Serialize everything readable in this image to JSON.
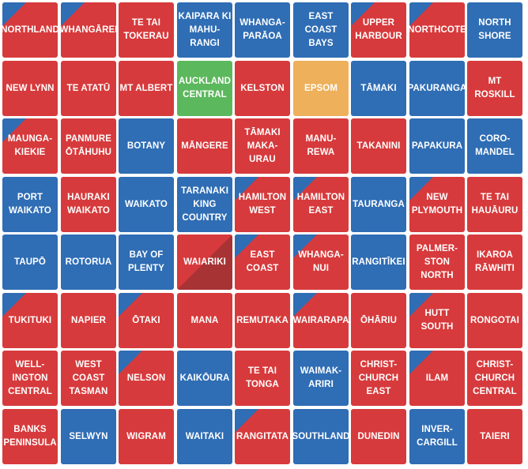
{
  "colors": {
    "red": "#d73a3c",
    "blue": "#2f6db4",
    "green": "#5cb85c",
    "orange": "#eeb05a",
    "darkred": "#a83335"
  },
  "electorates": [
    {
      "name": "NORTHLAND",
      "fill": "red",
      "corner": "blue"
    },
    {
      "name": "WHANGĀREI",
      "fill": "red",
      "corner": "blue"
    },
    {
      "name": "TE TAI\nTOKERAU",
      "fill": "red",
      "corner": null
    },
    {
      "name": "KAIPARA KI\nMAHU-\nRANGI",
      "fill": "blue",
      "corner": null
    },
    {
      "name": "WHANGA-\nPARĀOA",
      "fill": "blue",
      "corner": null
    },
    {
      "name": "EAST\nCOAST\nBAYS",
      "fill": "blue",
      "corner": null
    },
    {
      "name": "UPPER\nHARBOUR",
      "fill": "red",
      "corner": "blue"
    },
    {
      "name": "NORTHCOTE",
      "fill": "red",
      "corner": "blue"
    },
    {
      "name": "NORTH\nSHORE",
      "fill": "blue",
      "corner": null
    },
    {
      "name": "NEW LYNN",
      "fill": "red",
      "corner": null
    },
    {
      "name": "TE ATATŪ",
      "fill": "red",
      "corner": null
    },
    {
      "name": "MT ALBERT",
      "fill": "red",
      "corner": null
    },
    {
      "name": "AUCKLAND\nCENTRAL",
      "fill": "green",
      "corner": null
    },
    {
      "name": "KELSTON",
      "fill": "red",
      "corner": null
    },
    {
      "name": "EPSOM",
      "fill": "orange",
      "corner": null
    },
    {
      "name": "TĀMAKI",
      "fill": "blue",
      "corner": null
    },
    {
      "name": "PAKURANGA",
      "fill": "blue",
      "corner": null
    },
    {
      "name": "MT\nROSKILL",
      "fill": "red",
      "corner": null
    },
    {
      "name": "MAUNGA-\nKIEKIE",
      "fill": "red",
      "corner": "blue"
    },
    {
      "name": "PANMURE\nŌTĀHUHU",
      "fill": "red",
      "corner": null
    },
    {
      "name": "BOTANY",
      "fill": "blue",
      "corner": null
    },
    {
      "name": "MĀNGERE",
      "fill": "red",
      "corner": null
    },
    {
      "name": "TĀMAKI\nMAKA-\nURAU",
      "fill": "red",
      "corner": null
    },
    {
      "name": "MANU-\nREWA",
      "fill": "red",
      "corner": null
    },
    {
      "name": "TAKANINI",
      "fill": "red",
      "corner": null
    },
    {
      "name": "PAPAKURA",
      "fill": "blue",
      "corner": null
    },
    {
      "name": "CORO-\nMANDEL",
      "fill": "blue",
      "corner": null
    },
    {
      "name": "PORT\nWAIKATO",
      "fill": "blue",
      "corner": null
    },
    {
      "name": "HAURAKI\nWAIKATO",
      "fill": "red",
      "corner": null
    },
    {
      "name": "WAIKATO",
      "fill": "blue",
      "corner": null
    },
    {
      "name": "TARANAKI\nKING\nCOUNTRY",
      "fill": "blue",
      "corner": null
    },
    {
      "name": "HAMILTON\nWEST",
      "fill": "red",
      "corner": "blue"
    },
    {
      "name": "HAMILTON\nEAST",
      "fill": "red",
      "corner": "blue"
    },
    {
      "name": "TAURANGA",
      "fill": "blue",
      "corner": null
    },
    {
      "name": "NEW\nPLYMOUTH",
      "fill": "red",
      "corner": "blue"
    },
    {
      "name": "TE TAI\nHAUĀURU",
      "fill": "red",
      "corner": null
    },
    {
      "name": "TAUPŌ",
      "fill": "blue",
      "corner": null
    },
    {
      "name": "ROTORUA",
      "fill": "blue",
      "corner": null
    },
    {
      "name": "BAY OF\nPLENTY",
      "fill": "blue",
      "corner": null
    },
    {
      "name": "WAIARIKI",
      "fill": "darkred",
      "corner": "red"
    },
    {
      "name": "EAST\nCOAST",
      "fill": "red",
      "corner": "blue"
    },
    {
      "name": "WHANGA-\nNUI",
      "fill": "red",
      "corner": "blue"
    },
    {
      "name": "RANGITĪKEI",
      "fill": "blue",
      "corner": null
    },
    {
      "name": "PALMER-\nSTON\nNORTH",
      "fill": "red",
      "corner": null
    },
    {
      "name": "IKAROA\nRĀWHITI",
      "fill": "red",
      "corner": null
    },
    {
      "name": "TUKITUKI",
      "fill": "red",
      "corner": "blue"
    },
    {
      "name": "NAPIER",
      "fill": "red",
      "corner": null
    },
    {
      "name": "ŌTAKI",
      "fill": "red",
      "corner": "blue"
    },
    {
      "name": "MANA",
      "fill": "red",
      "corner": null
    },
    {
      "name": "REMUTAKA",
      "fill": "red",
      "corner": null
    },
    {
      "name": "WAIRARAPA",
      "fill": "red",
      "corner": "blue"
    },
    {
      "name": "ŌHĀRIU",
      "fill": "red",
      "corner": null
    },
    {
      "name": "HUTT\nSOUTH",
      "fill": "red",
      "corner": "blue"
    },
    {
      "name": "RONGOTAI",
      "fill": "red",
      "corner": null
    },
    {
      "name": "WELL-\nINGTON\nCENTRAL",
      "fill": "red",
      "corner": null
    },
    {
      "name": "WEST\nCOAST\nTASMAN",
      "fill": "red",
      "corner": null
    },
    {
      "name": "NELSON",
      "fill": "red",
      "corner": "blue"
    },
    {
      "name": "KAIKŌURA",
      "fill": "blue",
      "corner": null
    },
    {
      "name": "TE TAI\nTONGA",
      "fill": "red",
      "corner": null
    },
    {
      "name": "WAIMAK-\nARIRI",
      "fill": "blue",
      "corner": null
    },
    {
      "name": "CHRIST-\nCHURCH\nEAST",
      "fill": "red",
      "corner": null
    },
    {
      "name": "ILAM",
      "fill": "red",
      "corner": "blue"
    },
    {
      "name": "CHRIST-\nCHURCH\nCENTRAL",
      "fill": "red",
      "corner": null
    },
    {
      "name": "BANKS\nPENINSULA",
      "fill": "red",
      "corner": null
    },
    {
      "name": "SELWYN",
      "fill": "blue",
      "corner": null
    },
    {
      "name": "WIGRAM",
      "fill": "red",
      "corner": null
    },
    {
      "name": "WAITAKI",
      "fill": "blue",
      "corner": null
    },
    {
      "name": "RANGITATA",
      "fill": "red",
      "corner": "blue"
    },
    {
      "name": "SOUTHLAND",
      "fill": "blue",
      "corner": null
    },
    {
      "name": "DUNEDIN",
      "fill": "red",
      "corner": null
    },
    {
      "name": "INVER-\nCARGILL",
      "fill": "blue",
      "corner": null
    },
    {
      "name": "TAIERI",
      "fill": "red",
      "corner": null
    }
  ]
}
